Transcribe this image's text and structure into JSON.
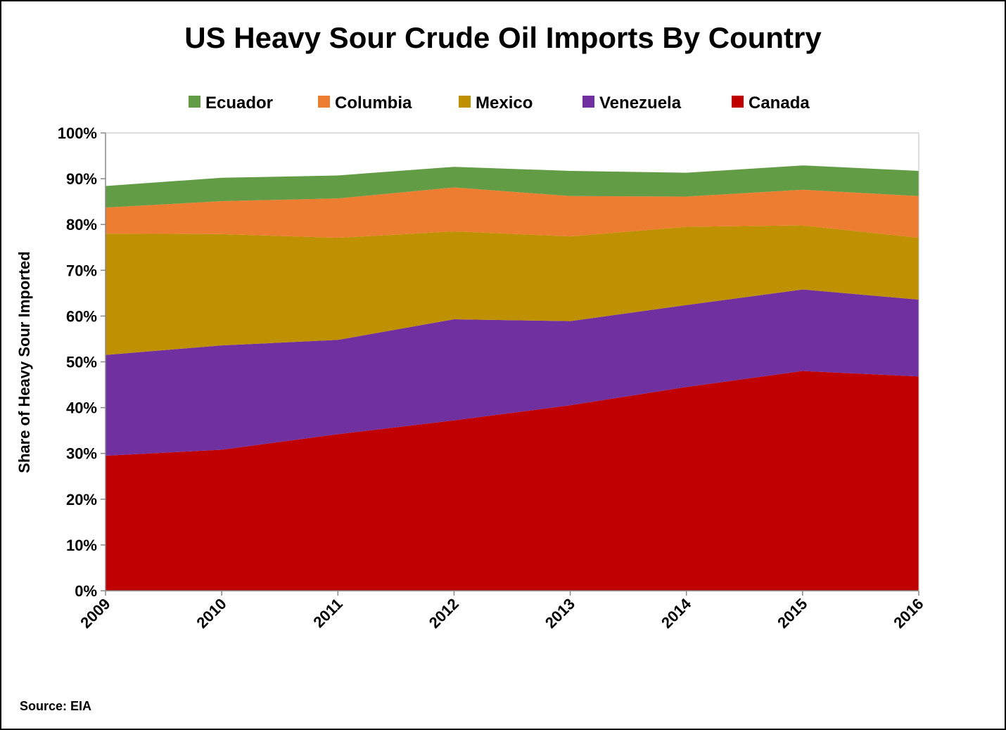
{
  "chart_data": {
    "type": "area",
    "stacked": true,
    "title": "US Heavy Sour Crude Oil Imports By Country",
    "ylabel": "Share of Heavy Sour Imported",
    "xlabel": "",
    "ylim": [
      0,
      100
    ],
    "y_ticks": [
      "0%",
      "10%",
      "20%",
      "30%",
      "40%",
      "50%",
      "60%",
      "70%",
      "80%",
      "90%",
      "100%"
    ],
    "categories": [
      "2009",
      "2010",
      "2011",
      "2012",
      "2013",
      "2014",
      "2015",
      "2016"
    ],
    "series": [
      {
        "name": "Canada",
        "color": "#c00000",
        "values": [
          29.5,
          30.8,
          34.2,
          37.2,
          40.5,
          44.5,
          48.0,
          46.8
        ]
      },
      {
        "name": "Venezuela",
        "color": "#7030a0",
        "values": [
          22.0,
          22.8,
          20.6,
          22.1,
          18.4,
          17.9,
          17.8,
          16.8
        ]
      },
      {
        "name": "Mexico",
        "color": "#bf9000",
        "values": [
          26.5,
          24.3,
          22.3,
          19.2,
          18.5,
          17.1,
          14.0,
          13.5
        ]
      },
      {
        "name": "Columbia",
        "color": "#ed7d31",
        "values": [
          5.7,
          7.2,
          8.6,
          9.6,
          8.8,
          6.6,
          7.8,
          9.1
        ]
      },
      {
        "name": "Ecuador",
        "color": "#629c44",
        "values": [
          4.7,
          5.1,
          5.0,
          4.5,
          5.5,
          5.2,
          5.3,
          5.5
        ]
      }
    ],
    "legend": {
      "position": "top",
      "order": [
        "Ecuador",
        "Columbia",
        "Mexico",
        "Venezuela",
        "Canada"
      ]
    },
    "grid": false
  },
  "source": "Source: EIA"
}
